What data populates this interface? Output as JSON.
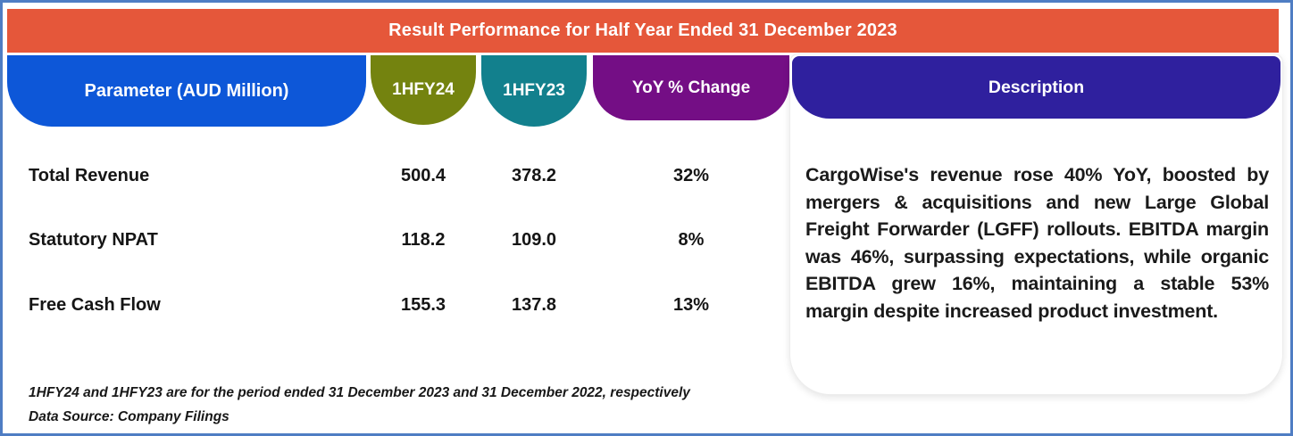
{
  "title": "Result Performance for Half Year Ended 31 December 2023",
  "table": {
    "columns": [
      {
        "label": "Parameter (AUD Million)",
        "color": "#0d57d8"
      },
      {
        "label": "1HFY24",
        "color": "#74830f"
      },
      {
        "label": "1HFY23",
        "color": "#12808d"
      },
      {
        "label": "YoY % Change",
        "color": "#740e85"
      }
    ],
    "rows": [
      {
        "parameter": "Total Revenue",
        "hfy24": "500.4",
        "hfy23": "378.2",
        "yoy": "32%"
      },
      {
        "parameter": "Statutory NPAT",
        "hfy24": "118.2",
        "hfy23": "109.0",
        "yoy": "8%"
      },
      {
        "parameter": "Free Cash Flow",
        "hfy24": "155.3",
        "hfy23": "137.8",
        "yoy": "13%"
      }
    ]
  },
  "description": {
    "header": "Description",
    "header_color": "#2f209e",
    "text": "CargoWise's revenue rose 40% YoY, boosted by mergers & acquisitions and new Large Global Freight Forwarder (LGFF) rollouts. EBITDA margin was 46%, surpassing expectations, while organic EBITDA grew 16%, maintaining a stable 53% margin despite increased product investment."
  },
  "footnotes": [
    "1HFY24 and 1HFY23 are for the period ended 31 December 2023 and 31 December 2022, respectively",
    "Data Source: Company Filings"
  ],
  "colors": {
    "banner": "#e5573a",
    "frame_border": "#4f7dc3",
    "body_text": "#151515"
  },
  "chart_data": {
    "type": "table",
    "title": "Result Performance for Half Year Ended 31 December 2023",
    "units": "AUD Million",
    "columns": [
      "Parameter (AUD Million)",
      "1HFY24",
      "1HFY23",
      "YoY % Change"
    ],
    "rows": [
      [
        "Total Revenue",
        500.4,
        378.2,
        "32%"
      ],
      [
        "Statutory NPAT",
        118.2,
        109.0,
        "8%"
      ],
      [
        "Free Cash Flow",
        155.3,
        137.8,
        "13%"
      ]
    ]
  }
}
